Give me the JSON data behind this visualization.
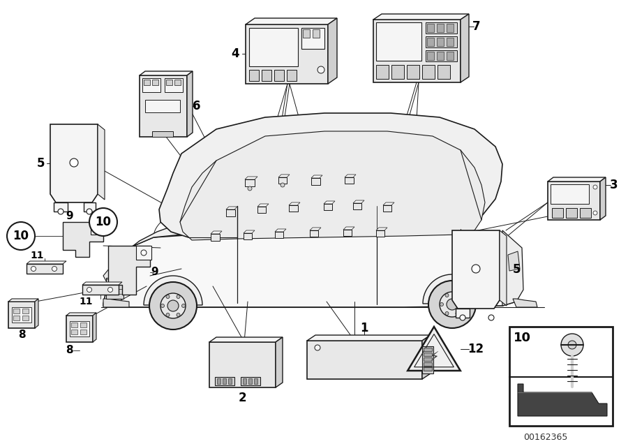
{
  "background_color": "#ffffff",
  "fig_width": 9.0,
  "fig_height": 6.36,
  "watermark": "00162365",
  "line_color": "#1a1a1a",
  "part_fill": "#f5f5f5",
  "part_fill2": "#e8e8e8",
  "part_fill3": "#d0d0d0",
  "part_outline": "#1a1a1a",
  "white": "#ffffff",
  "circle_r": 18
}
